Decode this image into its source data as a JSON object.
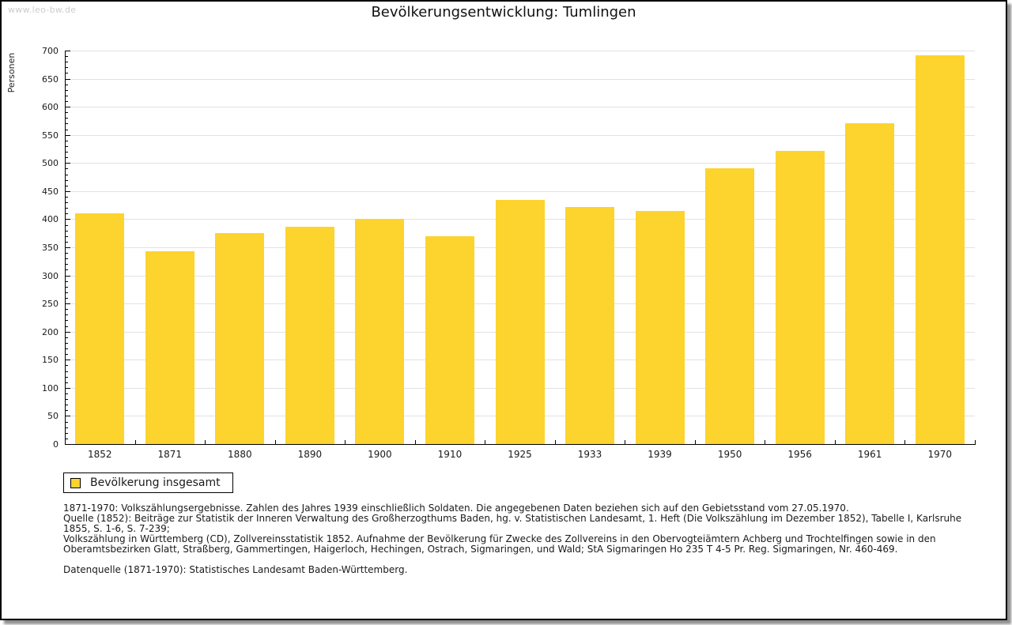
{
  "page": {
    "watermark": "www.leo-bw.de",
    "title": "Bevölkerungsentwicklung: Tumlingen"
  },
  "chart_data": {
    "type": "bar",
    "title": "Bevölkerungsentwicklung: Tumlingen",
    "ylabel": "Personen",
    "xlabel": "",
    "categories": [
      "1852",
      "1871",
      "1880",
      "1890",
      "1900",
      "1910",
      "1925",
      "1933",
      "1939",
      "1950",
      "1956",
      "1961",
      "1970"
    ],
    "values": [
      410,
      343,
      375,
      386,
      401,
      369,
      435,
      421,
      414,
      490,
      522,
      570,
      692
    ],
    "series_name": "Bevölkerung insgesamt",
    "ylim": [
      0,
      700
    ],
    "ytick_step": 50,
    "y_minor_step": 10,
    "grid": true,
    "legend_position": "below-left",
    "bar_color": "#FDD32D"
  },
  "legend": {
    "label": "Bevölkerung insgesamt",
    "swatch_color": "#FDD32D"
  },
  "footer": {
    "lines": [
      "1871-1970: Volkszählungsergebnisse. Zahlen des Jahres 1939 einschließlich Soldaten. Die angegebenen Daten beziehen sich auf den Gebietsstand vom 27.05.1970.",
      "Quelle (1852): Beiträge zur Statistik der Inneren Verwaltung des Großherzogthums Baden, hg. v. Statistischen Landesamt, 1. Heft (Die Volkszählung im Dezember 1852), Tabelle I, Karlsruhe 1855, S. 1-6, S. 7-239;",
      "Volkszählung in Württemberg (CD), Zollvereinsstatistik 1852. Aufnahme der Bevölkerung für Zwecke des Zollvereins in den Obervogteiämtern Achberg und Trochtelfingen sowie in den Oberamtsbezirken Glatt, Straßberg, Gammertingen, Haigerloch, Hechingen, Ostrach, Sigmaringen, und Wald; StA Sigmaringen Ho 235 T 4-5 Pr. Reg. Sigmaringen, Nr. 460-469.",
      "",
      "Datenquelle (1871-1970): Statistisches Landesamt Baden-Württemberg."
    ]
  },
  "colors": {
    "bar": "#FDD32D",
    "grid": "#E2E2E2",
    "axis": "#000000",
    "watermark": "#CCCCCC",
    "text": "#1A1A1A"
  }
}
